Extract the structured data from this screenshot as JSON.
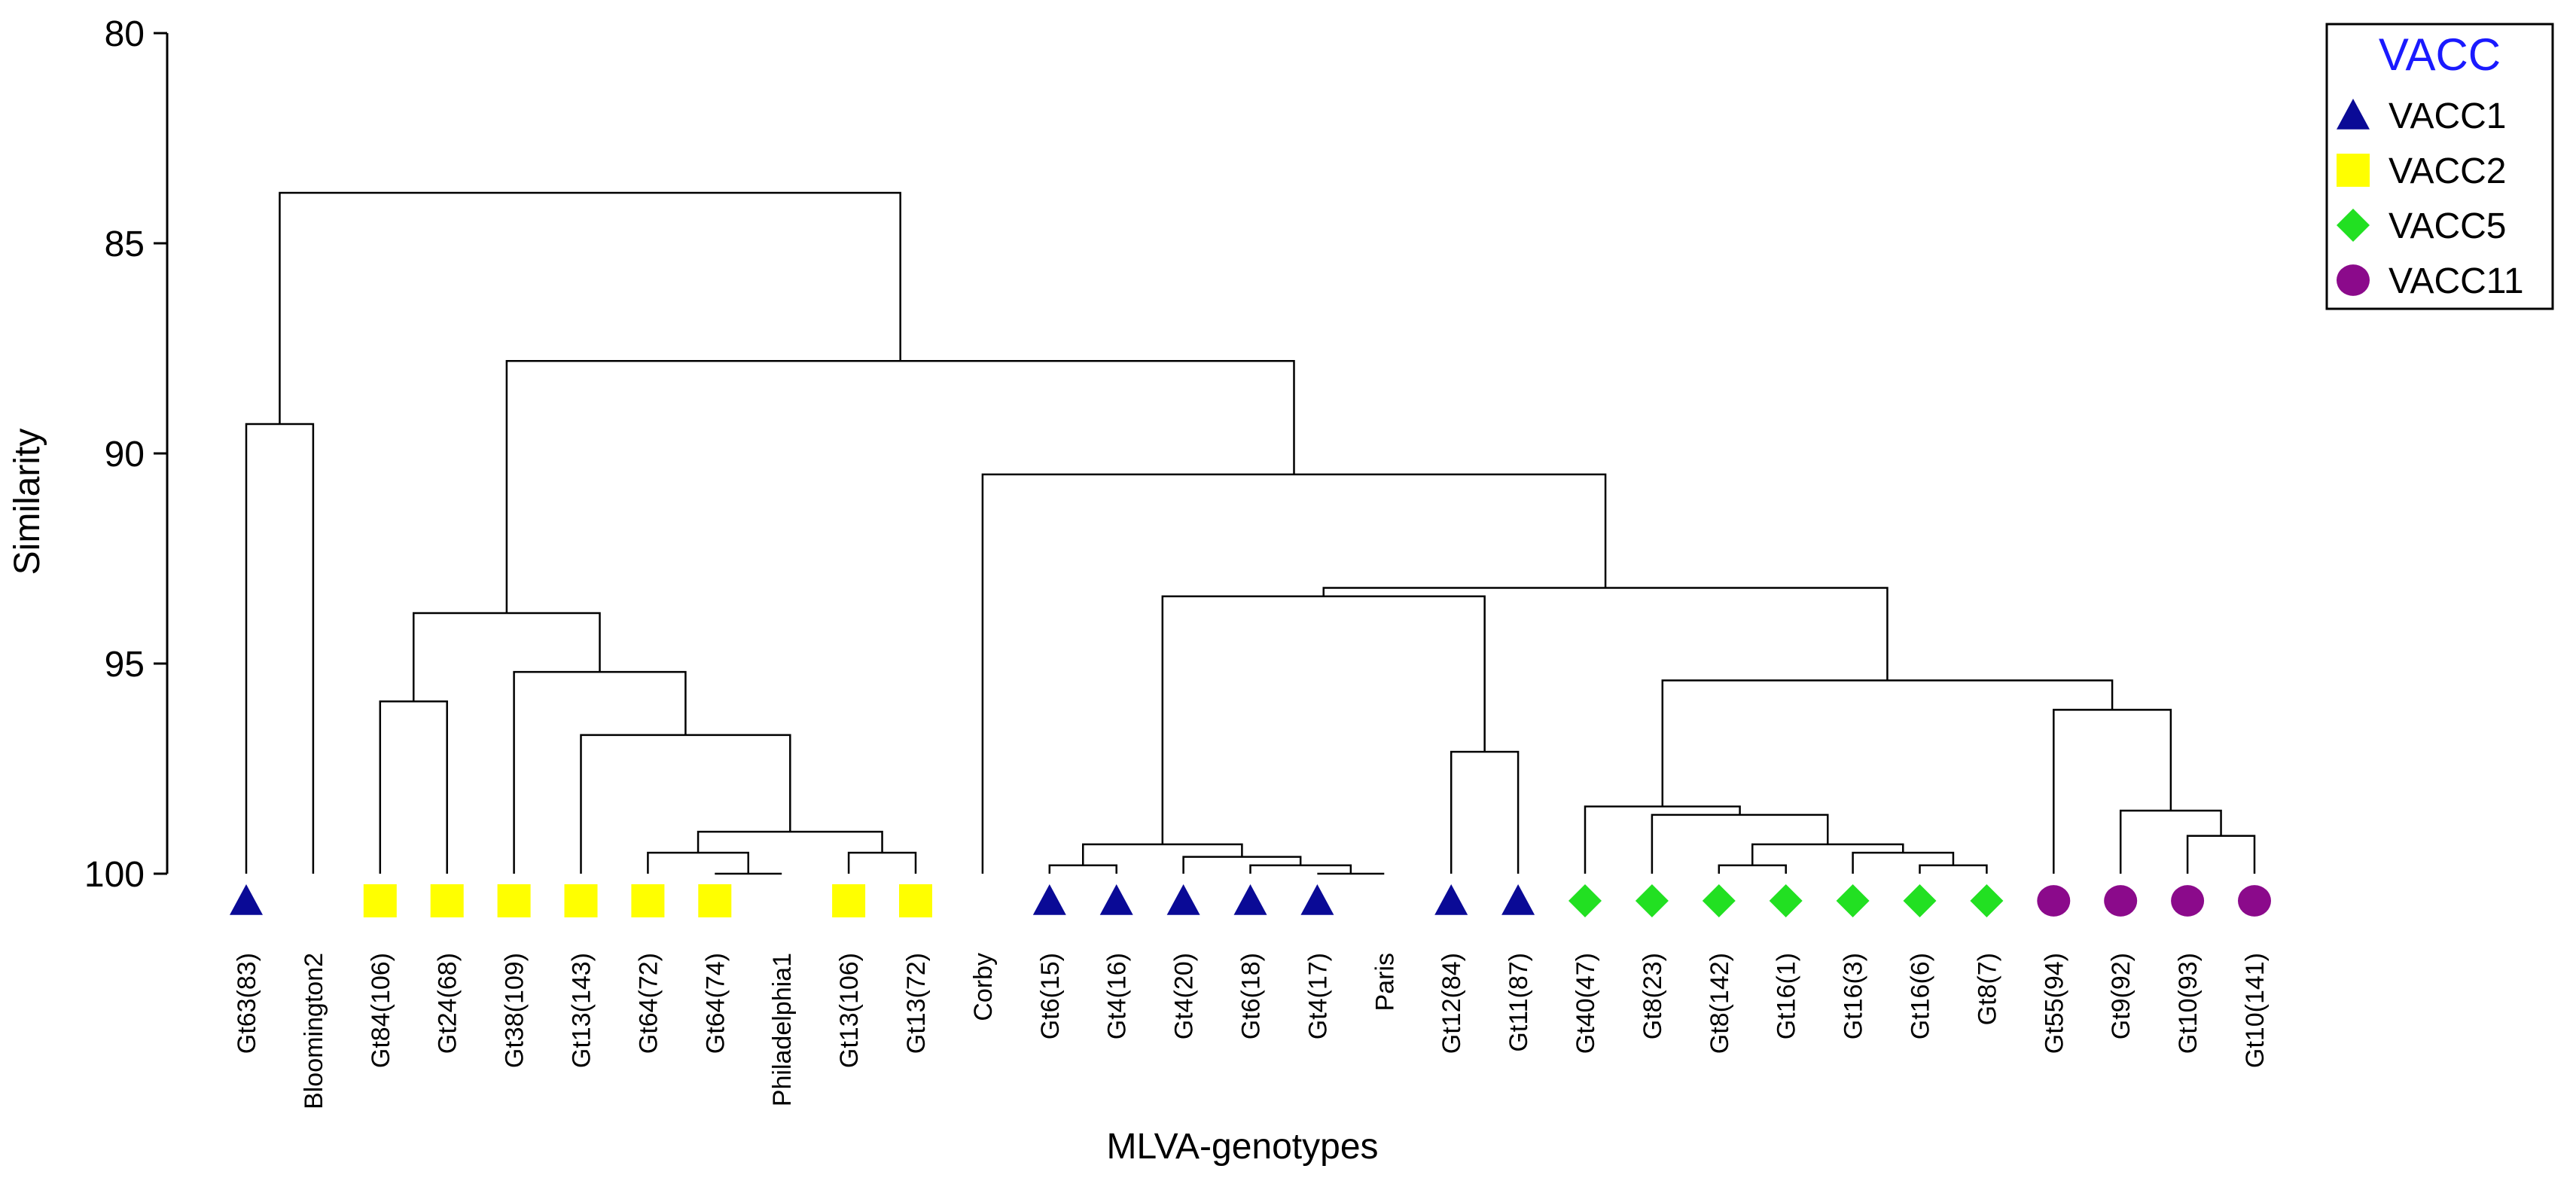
{
  "chart_data": {
    "type": "dendrogram",
    "title": "",
    "xlabel": "MLVA-genotypes",
    "ylabel": "Similarity",
    "ylim": [
      80,
      100
    ],
    "yticks": [
      80,
      85,
      90,
      95,
      100
    ],
    "grid": false,
    "legend": {
      "title": "VACC",
      "placement": "top-right",
      "entries": [
        {
          "group": "VACC1",
          "label": "VACC1",
          "marker": "triangle",
          "color": "#0a0a96"
        },
        {
          "group": "VACC2",
          "label": "VACC2",
          "marker": "square",
          "color": "#ffff00"
        },
        {
          "group": "VACC5",
          "label": "VACC5",
          "marker": "diamond",
          "color": "#22e022"
        },
        {
          "group": "VACC11",
          "label": "VACC11",
          "marker": "circle",
          "color": "#8b0a8b"
        }
      ]
    },
    "leaves": [
      {
        "label": "Gt63(83)",
        "group": "VACC1"
      },
      {
        "label": "Bloomington2",
        "group": null
      },
      {
        "label": "Gt84(106)",
        "group": "VACC2"
      },
      {
        "label": "Gt24(68)",
        "group": "VACC2"
      },
      {
        "label": "Gt38(109)",
        "group": "VACC2"
      },
      {
        "label": "Gt13(143)",
        "group": "VACC2"
      },
      {
        "label": "Gt64(72)",
        "group": "VACC2"
      },
      {
        "label": "Gt64(74)",
        "group": "VACC2"
      },
      {
        "label": "Philadelphia1",
        "group": null
      },
      {
        "label": "Gt13(106)",
        "group": "VACC2"
      },
      {
        "label": "Gt13(72)",
        "group": "VACC2"
      },
      {
        "label": "Corby",
        "group": null
      },
      {
        "label": "Gt6(15)",
        "group": "VACC1"
      },
      {
        "label": "Gt4(16)",
        "group": "VACC1"
      },
      {
        "label": "Gt4(20)",
        "group": "VACC1"
      },
      {
        "label": "Gt6(18)",
        "group": "VACC1"
      },
      {
        "label": "Gt4(17)",
        "group": "VACC1"
      },
      {
        "label": "Paris",
        "group": null
      },
      {
        "label": "Gt12(84)",
        "group": "VACC1"
      },
      {
        "label": "Gt11(87)",
        "group": "VACC1"
      },
      {
        "label": "Gt40(47)",
        "group": "VACC5"
      },
      {
        "label": "Gt8(23)",
        "group": "VACC5"
      },
      {
        "label": "Gt8(142)",
        "group": "VACC5"
      },
      {
        "label": "Gt16(1)",
        "group": "VACC5"
      },
      {
        "label": "Gt16(3)",
        "group": "VACC5"
      },
      {
        "label": "Gt16(6)",
        "group": "VACC5"
      },
      {
        "label": "Gt8(7)",
        "group": "VACC5"
      },
      {
        "label": "Gt55(94)",
        "group": "VACC11"
      },
      {
        "label": "Gt9(92)",
        "group": "VACC11"
      },
      {
        "label": "Gt10(93)",
        "group": "VACC11"
      },
      {
        "label": "Gt10(141)",
        "group": "VACC11"
      }
    ],
    "merges": [
      {
        "id": "n1",
        "children": [
          0,
          1
        ],
        "similarity": 89.3
      },
      {
        "id": "n2",
        "children": [
          2,
          3
        ],
        "similarity": 95.9
      },
      {
        "id": "n3",
        "children": [
          7,
          8
        ],
        "similarity": 100
      },
      {
        "id": "n4",
        "children": [
          6,
          "n3"
        ],
        "similarity": 99.5
      },
      {
        "id": "n5",
        "children": [
          9,
          10
        ],
        "similarity": 99.5
      },
      {
        "id": "n6",
        "children": [
          "n4",
          "n5"
        ],
        "similarity": 99.0
      },
      {
        "id": "n7",
        "children": [
          5,
          "n6"
        ],
        "similarity": 96.7
      },
      {
        "id": "n8",
        "children": [
          4,
          "n7"
        ],
        "similarity": 95.2
      },
      {
        "id": "n9",
        "children": [
          "n2",
          "n8"
        ],
        "similarity": 93.8
      },
      {
        "id": "n10",
        "children": [
          16,
          17
        ],
        "similarity": 100
      },
      {
        "id": "n11",
        "children": [
          15,
          "n10"
        ],
        "similarity": 99.8
      },
      {
        "id": "n12",
        "children": [
          14,
          "n11"
        ],
        "similarity": 99.6
      },
      {
        "id": "n13",
        "children": [
          12,
          13
        ],
        "similarity": 99.8
      },
      {
        "id": "n14",
        "children": [
          "n13",
          "n12"
        ],
        "similarity": 99.3
      },
      {
        "id": "n15",
        "children": [
          18,
          19
        ],
        "similarity": 97.1
      },
      {
        "id": "n16",
        "children": [
          "n14",
          "n15"
        ],
        "similarity": 93.4
      },
      {
        "id": "n17",
        "children": [
          22,
          23
        ],
        "similarity": 99.8
      },
      {
        "id": "n18",
        "children": [
          25,
          26
        ],
        "similarity": 99.8
      },
      {
        "id": "n19",
        "children": [
          24,
          "n18"
        ],
        "similarity": 99.5
      },
      {
        "id": "n20",
        "children": [
          "n17",
          "n19"
        ],
        "similarity": 99.3
      },
      {
        "id": "n21",
        "children": [
          21,
          "n20"
        ],
        "similarity": 98.6
      },
      {
        "id": "n22",
        "children": [
          20,
          "n21"
        ],
        "similarity": 98.4
      },
      {
        "id": "n23",
        "children": [
          29,
          30
        ],
        "similarity": 99.1
      },
      {
        "id": "n24",
        "children": [
          28,
          "n23"
        ],
        "similarity": 98.5
      },
      {
        "id": "n25",
        "children": [
          27,
          "n24"
        ],
        "similarity": 96.1
      },
      {
        "id": "n26",
        "children": [
          "n22",
          "n25"
        ],
        "similarity": 95.4
      },
      {
        "id": "n27",
        "children": [
          "n16",
          "n26"
        ],
        "similarity": 93.2
      },
      {
        "id": "n28",
        "children": [
          11,
          "n27"
        ],
        "similarity": 90.5
      },
      {
        "id": "n29",
        "children": [
          "n9",
          "n28"
        ],
        "similarity": 87.8
      },
      {
        "id": "n30",
        "children": [
          "n1",
          "n29"
        ],
        "similarity": 83.8
      }
    ]
  }
}
